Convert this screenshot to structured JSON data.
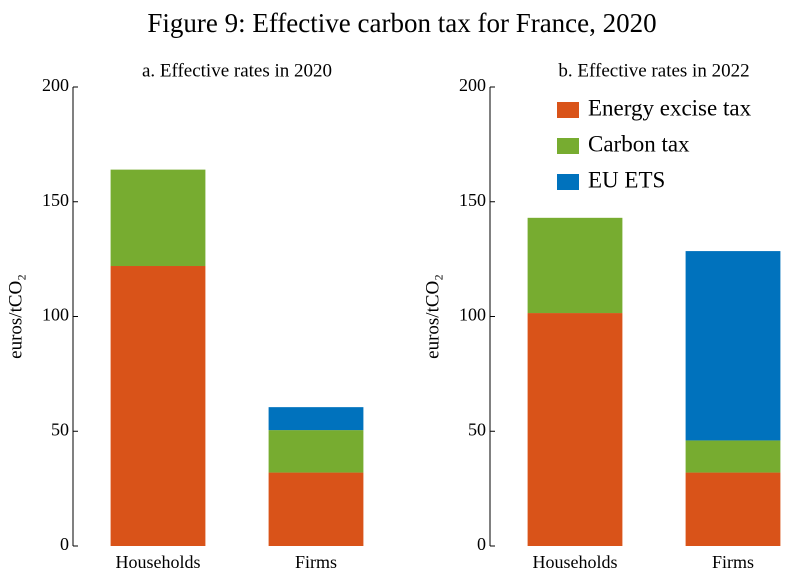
{
  "title": "Figure 9: Effective carbon tax for France, 2020",
  "chart_data": [
    {
      "type": "stacked_bar",
      "subtitle": "a. Effective rates in 2020",
      "ylabel": "euros/tCO₂",
      "categories": [
        "Households",
        "Firms"
      ],
      "series": [
        {
          "color": "#d95319",
          "values": [
            122,
            32
          ]
        },
        {
          "color": "#77ac30",
          "values": [
            42,
            18.5
          ]
        },
        {
          "color": "#0072bd",
          "values": [
            0,
            10
          ]
        }
      ],
      "ylim": [
        0,
        200
      ],
      "yticks": [
        0,
        50,
        100,
        150,
        200
      ]
    },
    {
      "type": "stacked_bar",
      "subtitle": "b. Effective rates in 2022",
      "ylabel": "euros/tCO₂",
      "categories": [
        "Households",
        "Firms"
      ],
      "series": [
        {
          "name": "Energy excise tax",
          "color": "#d95319",
          "values": [
            101.5,
            32
          ]
        },
        {
          "name": "Carbon tax",
          "color": "#77ac30",
          "values": [
            41.5,
            14
          ]
        },
        {
          "name": "EU ETS",
          "color": "#0072bd",
          "values": [
            0,
            82.5
          ]
        }
      ],
      "ylim": [
        0,
        200
      ],
      "yticks": [
        0,
        50,
        100,
        150,
        200
      ],
      "legend": "upper right"
    }
  ]
}
